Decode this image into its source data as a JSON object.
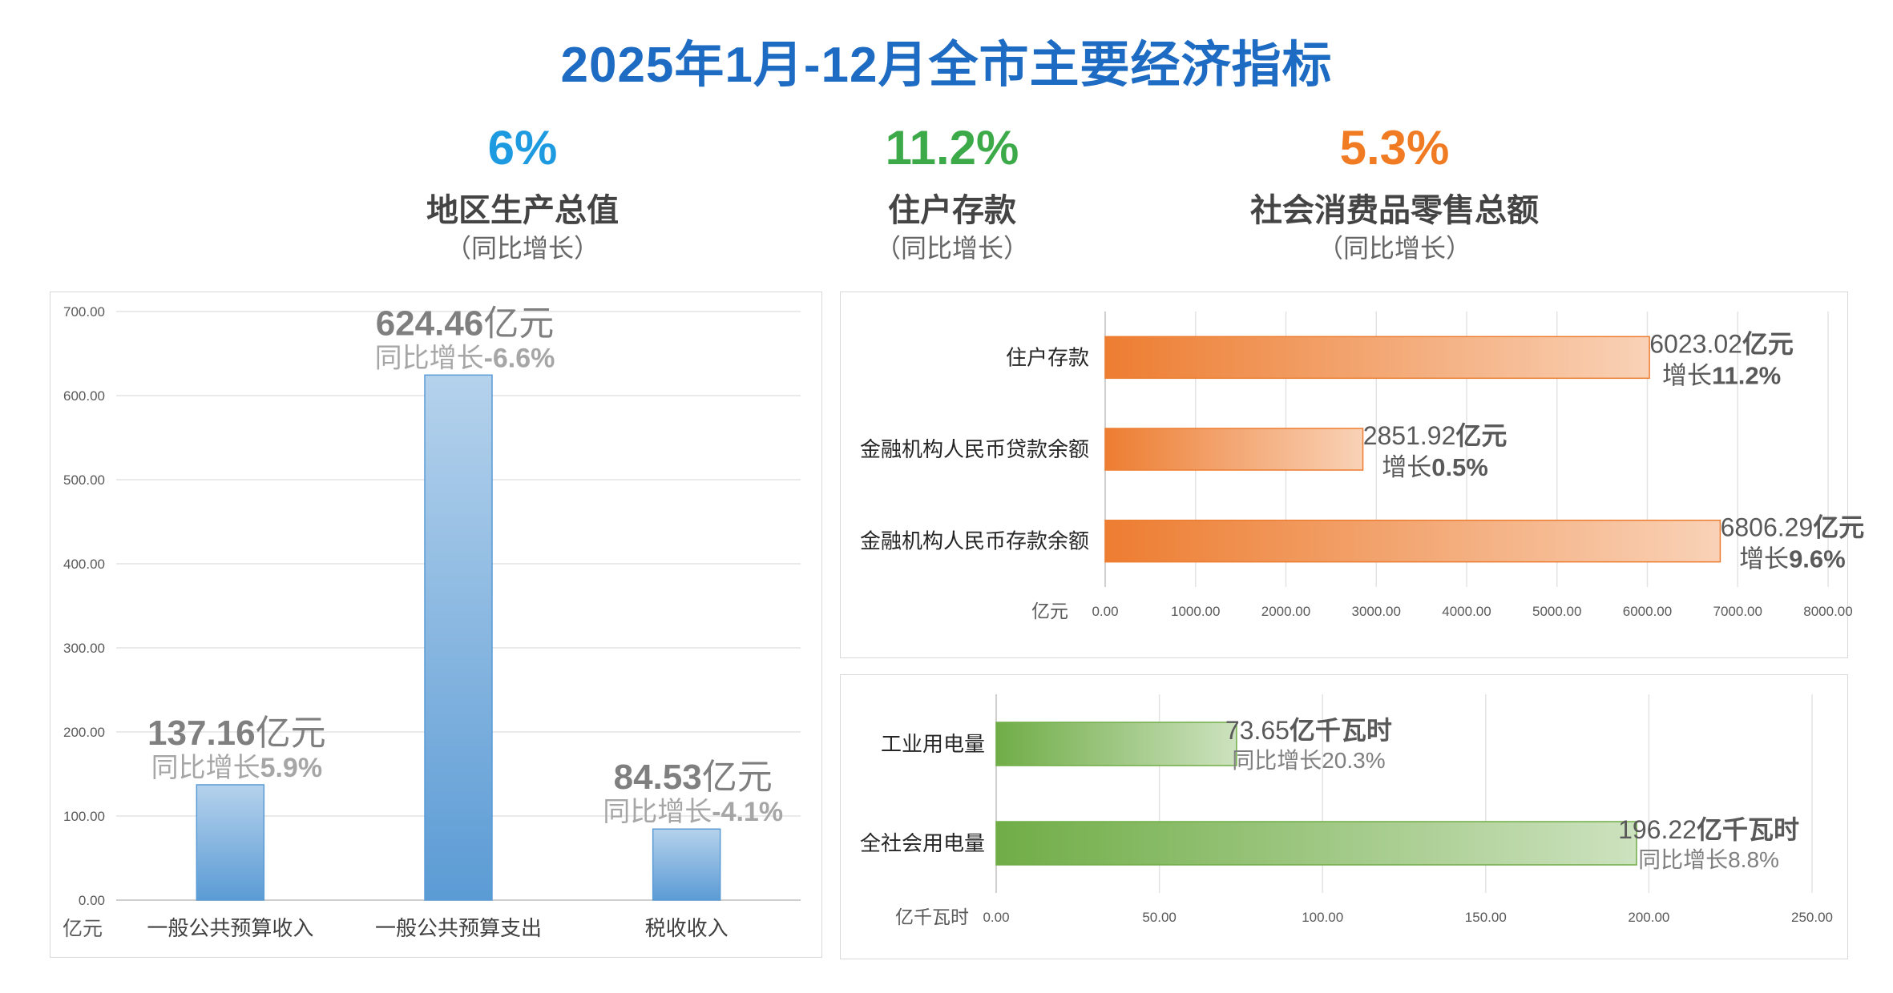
{
  "page": {
    "title": "2025年1月-12月全市主要经济指标"
  },
  "kpis": [
    {
      "value": "6%",
      "name": "地区生产总值",
      "note": "（同比增长）",
      "color": "#1e9be0"
    },
    {
      "value": "11.2%",
      "name": "住户存款",
      "note": "（同比增长）",
      "color": "#3daa4a"
    },
    {
      "value": "5.3%",
      "name": "社会消费品零售总额",
      "note": "（同比增长）",
      "color": "#f07b22"
    }
  ],
  "chart_data": [
    {
      "type": "bar",
      "orientation": "vertical",
      "unit_label": "亿元",
      "ylim": [
        0,
        700
      ],
      "yticks": [
        "0.00",
        "100.00",
        "200.00",
        "300.00",
        "400.00",
        "500.00",
        "600.00",
        "700.00"
      ],
      "grid": true,
      "color": "#5b9bd5",
      "categories": [
        "一般公共预算收入",
        "一般公共预算支出",
        "税收收入"
      ],
      "values": [
        137.16,
        624.46,
        84.53
      ],
      "label_values": [
        "137.16",
        "624.46",
        "84.53"
      ],
      "label_unit": "亿元",
      "label_growth_prefix": "同比增长",
      "label_growths": [
        "5.9%",
        "-6.6%",
        "-4.1%"
      ]
    },
    {
      "type": "bar",
      "orientation": "horizontal",
      "unit_label": "亿元",
      "xlim": [
        0,
        8000
      ],
      "xticks": [
        "0.00",
        "1000.00",
        "2000.00",
        "3000.00",
        "4000.00",
        "5000.00",
        "6000.00",
        "7000.00",
        "8000.00"
      ],
      "grid": true,
      "color": "#ed7d31",
      "categories": [
        "住户存款",
        "金融机构人民币贷款余额",
        "金融机构人民币存款余额"
      ],
      "values": [
        6023.02,
        2851.92,
        6806.29
      ],
      "label_values": [
        "6023.02",
        "2851.92",
        "6806.29"
      ],
      "label_unit": "亿元",
      "label_growth_prefix": "增长",
      "label_growths": [
        "11.2%",
        "0.5%",
        "9.6%"
      ]
    },
    {
      "type": "bar",
      "orientation": "horizontal",
      "unit_label": "亿千瓦时",
      "xlim": [
        0,
        250
      ],
      "xticks": [
        "0.00",
        "50.00",
        "100.00",
        "150.00",
        "200.00",
        "250.00"
      ],
      "grid": true,
      "color": "#70ad47",
      "categories": [
        "工业用电量",
        "全社会用电量"
      ],
      "values": [
        73.65,
        196.22
      ],
      "label_values": [
        "73.65",
        "196.22"
      ],
      "label_unit": "亿千瓦时",
      "label_growth_prefix": "同比增长",
      "label_growths": [
        "20.3%",
        "8.8%"
      ]
    }
  ]
}
